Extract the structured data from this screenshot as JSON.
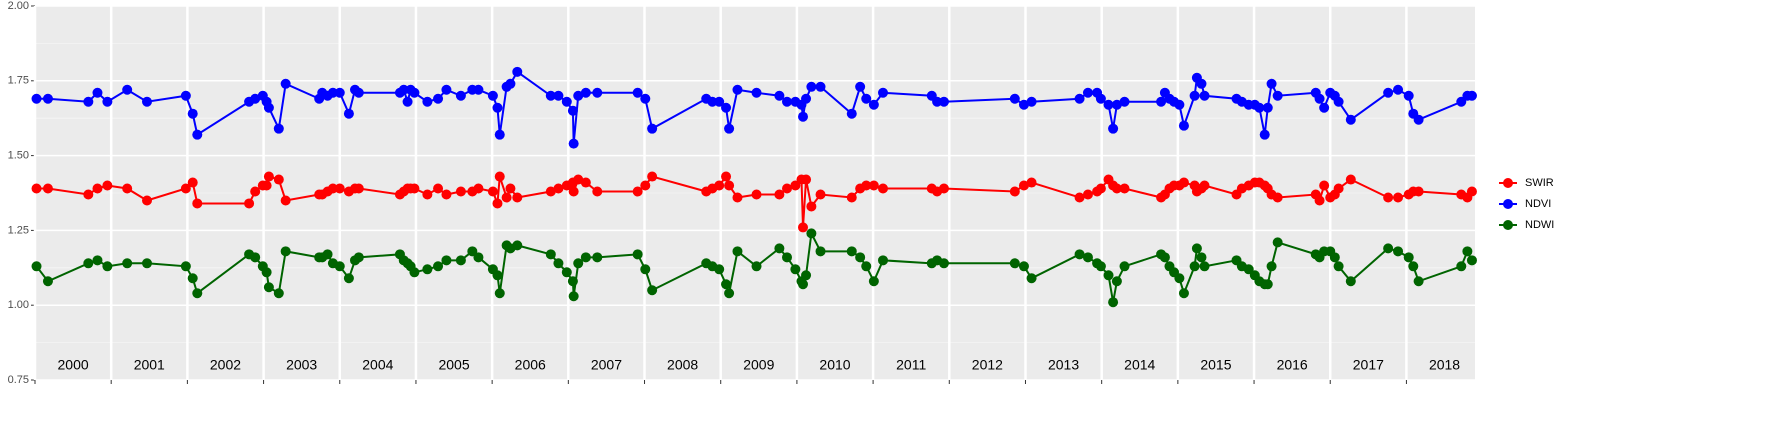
{
  "chart_data": {
    "type": "line",
    "x": [
      2000.02,
      2000.17,
      2000.7,
      2000.82,
      2000.95,
      2001.21,
      2001.47,
      2001.98,
      2002.07,
      2002.13,
      2002.81,
      2002.89,
      2002.99,
      2003.04,
      2003.07,
      2003.2,
      2003.29,
      2003.73,
      2003.77,
      2003.84,
      2003.91,
      2004.0,
      2004.12,
      2004.2,
      2004.25,
      2004.79,
      2004.84,
      2004.89,
      2004.93,
      2004.98,
      2005.15,
      2005.29,
      2005.4,
      2005.59,
      2005.74,
      2005.82,
      2006.01,
      2006.07,
      2006.1,
      2006.19,
      2006.24,
      2006.33,
      2006.77,
      2006.87,
      2006.98,
      2007.06,
      2007.07,
      2007.13,
      2007.23,
      2007.38,
      2007.91,
      2008.01,
      2008.1,
      2008.81,
      2008.89,
      2008.98,
      2009.07,
      2009.11,
      2009.22,
      2009.47,
      2009.77,
      2009.87,
      2009.98,
      2010.06,
      2010.08,
      2010.12,
      2010.19,
      2010.31,
      2010.72,
      2010.83,
      2010.91,
      2011.01,
      2011.13,
      2011.77,
      2011.84,
      2011.93,
      2012.86,
      2012.98,
      2013.08,
      2013.71,
      2013.82,
      2013.94,
      2013.99,
      2014.09,
      2014.15,
      2014.2,
      2014.3,
      2014.78,
      2014.83,
      2014.89,
      2014.95,
      2015.02,
      2015.08,
      2015.22,
      2015.25,
      2015.31,
      2015.35,
      2015.77,
      2015.84,
      2015.93,
      2016.01,
      2016.07,
      2016.14,
      2016.18,
      2016.23,
      2016.31,
      2016.81,
      2016.86,
      2016.92,
      2017.0,
      2017.06,
      2017.11,
      2017.27,
      2017.76,
      2017.89,
      2018.03,
      2018.09,
      2018.16,
      2018.72,
      2018.8,
      2018.86
    ],
    "series": [
      {
        "name": "SWIR",
        "color": "#ff0000",
        "values": [
          1.39,
          1.39,
          1.37,
          1.39,
          1.4,
          1.39,
          1.35,
          1.39,
          1.41,
          1.34,
          1.34,
          1.38,
          1.4,
          1.4,
          1.43,
          1.42,
          1.35,
          1.37,
          1.37,
          1.38,
          1.39,
          1.39,
          1.38,
          1.39,
          1.39,
          1.37,
          1.38,
          1.39,
          1.39,
          1.39,
          1.37,
          1.39,
          1.37,
          1.38,
          1.38,
          1.39,
          1.38,
          1.34,
          1.43,
          1.36,
          1.39,
          1.36,
          1.38,
          1.39,
          1.4,
          1.41,
          1.38,
          1.42,
          1.41,
          1.38,
          1.38,
          1.4,
          1.43,
          1.38,
          1.39,
          1.4,
          1.43,
          1.4,
          1.36,
          1.37,
          1.37,
          1.39,
          1.4,
          1.42,
          1.26,
          1.42,
          1.33,
          1.37,
          1.36,
          1.39,
          1.4,
          1.4,
          1.39,
          1.39,
          1.38,
          1.39,
          1.38,
          1.4,
          1.41,
          1.36,
          1.37,
          1.38,
          1.39,
          1.42,
          1.4,
          1.39,
          1.39,
          1.36,
          1.37,
          1.39,
          1.4,
          1.4,
          1.41,
          1.4,
          1.38,
          1.39,
          1.4,
          1.37,
          1.39,
          1.4,
          1.41,
          1.41,
          1.4,
          1.39,
          1.37,
          1.36,
          1.37,
          1.35,
          1.4,
          1.36,
          1.37,
          1.39,
          1.42,
          1.36,
          1.36,
          1.37,
          1.38,
          1.38,
          1.37,
          1.36,
          1.38
        ]
      },
      {
        "name": "NDVI",
        "color": "#0000ff",
        "values": [
          1.69,
          1.69,
          1.68,
          1.71,
          1.68,
          1.72,
          1.68,
          1.7,
          1.64,
          1.57,
          1.68,
          1.69,
          1.7,
          1.68,
          1.66,
          1.59,
          1.74,
          1.69,
          1.71,
          1.7,
          1.71,
          1.71,
          1.64,
          1.72,
          1.71,
          1.71,
          1.72,
          1.68,
          1.72,
          1.71,
          1.68,
          1.69,
          1.72,
          1.7,
          1.72,
          1.72,
          1.7,
          1.66,
          1.57,
          1.73,
          1.74,
          1.78,
          1.7,
          1.7,
          1.68,
          1.65,
          1.54,
          1.7,
          1.71,
          1.71,
          1.71,
          1.69,
          1.59,
          1.69,
          1.68,
          1.68,
          1.66,
          1.59,
          1.72,
          1.71,
          1.7,
          1.68,
          1.68,
          1.67,
          1.63,
          1.69,
          1.73,
          1.73,
          1.64,
          1.73,
          1.69,
          1.67,
          1.71,
          1.7,
          1.68,
          1.68,
          1.69,
          1.67,
          1.68,
          1.69,
          1.71,
          1.71,
          1.69,
          1.67,
          1.59,
          1.67,
          1.68,
          1.68,
          1.71,
          1.69,
          1.68,
          1.67,
          1.6,
          1.7,
          1.76,
          1.74,
          1.7,
          1.69,
          1.68,
          1.67,
          1.67,
          1.66,
          1.57,
          1.66,
          1.74,
          1.7,
          1.71,
          1.69,
          1.66,
          1.71,
          1.7,
          1.68,
          1.62,
          1.71,
          1.72,
          1.7,
          1.64,
          1.62,
          1.68,
          1.7,
          1.7
        ]
      },
      {
        "name": "NDWI",
        "color": "#006400",
        "values": [
          1.13,
          1.08,
          1.14,
          1.15,
          1.13,
          1.14,
          1.14,
          1.13,
          1.09,
          1.04,
          1.17,
          1.16,
          1.13,
          1.11,
          1.06,
          1.04,
          1.18,
          1.16,
          1.16,
          1.17,
          1.14,
          1.13,
          1.09,
          1.15,
          1.16,
          1.17,
          1.15,
          1.14,
          1.13,
          1.11,
          1.12,
          1.13,
          1.15,
          1.15,
          1.18,
          1.16,
          1.12,
          1.1,
          1.04,
          1.2,
          1.19,
          1.2,
          1.17,
          1.14,
          1.11,
          1.08,
          1.03,
          1.14,
          1.16,
          1.16,
          1.17,
          1.12,
          1.05,
          1.14,
          1.13,
          1.12,
          1.07,
          1.04,
          1.18,
          1.13,
          1.19,
          1.16,
          1.12,
          1.08,
          1.07,
          1.1,
          1.24,
          1.18,
          1.18,
          1.16,
          1.13,
          1.08,
          1.15,
          1.14,
          1.15,
          1.14,
          1.14,
          1.13,
          1.09,
          1.17,
          1.16,
          1.14,
          1.13,
          1.1,
          1.01,
          1.08,
          1.13,
          1.17,
          1.16,
          1.13,
          1.11,
          1.09,
          1.04,
          1.13,
          1.19,
          1.16,
          1.13,
          1.15,
          1.13,
          1.12,
          1.1,
          1.08,
          1.07,
          1.07,
          1.13,
          1.21,
          1.17,
          1.16,
          1.18,
          1.18,
          1.16,
          1.13,
          1.08,
          1.19,
          1.18,
          1.16,
          1.13,
          1.08,
          1.13,
          1.18,
          1.15
        ]
      }
    ],
    "xlim": [
      2000,
      2018.9
    ],
    "xticks": [
      2000,
      2001,
      2002,
      2003,
      2004,
      2005,
      2006,
      2007,
      2008,
      2009,
      2010,
      2011,
      2012,
      2013,
      2014,
      2015,
      2016,
      2017,
      2018
    ],
    "ylim": [
      0.75,
      2
    ],
    "yticks": [
      0.75,
      {
        "value": 1,
        "label": "1.00"
      },
      1.25,
      {
        "value": 1.5,
        "label": "1.50"
      },
      1.75,
      {
        "value": 2,
        "label": "2.00"
      }
    ],
    "grid": true,
    "legend": "right"
  }
}
